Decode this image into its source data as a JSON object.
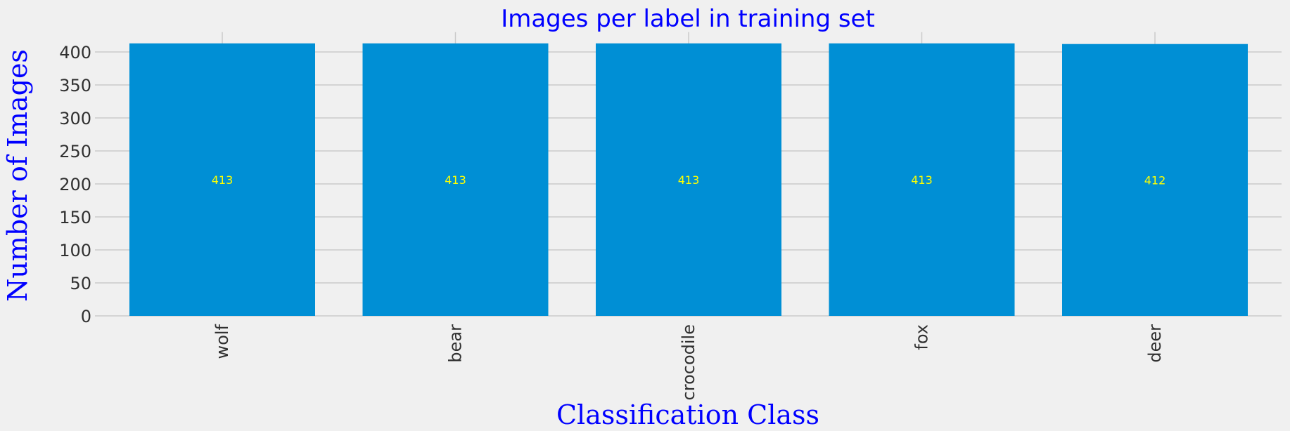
{
  "chart_data": {
    "type": "bar",
    "title": "Images per label in training set",
    "xlabel": "Classification Class",
    "ylabel": "Number of Images",
    "categories": [
      "wolf",
      "bear",
      "crocodile",
      "fox",
      "deer"
    ],
    "values": [
      413,
      413,
      413,
      413,
      412
    ],
    "data_labels": [
      "413",
      "413",
      "413",
      "413",
      "412"
    ],
    "ylim": [
      0,
      430
    ],
    "yticks": [
      0,
      50,
      100,
      150,
      200,
      250,
      300,
      350,
      400
    ],
    "grid": true,
    "legend": "none"
  },
  "colors": {
    "background": "#f0f0f0",
    "bar": "#008fd5",
    "grid": "#cbcbcb",
    "title": "#0000ff",
    "axis_title": "#0000ff",
    "data_label": "#ffff00",
    "tick_label": "#303030"
  }
}
